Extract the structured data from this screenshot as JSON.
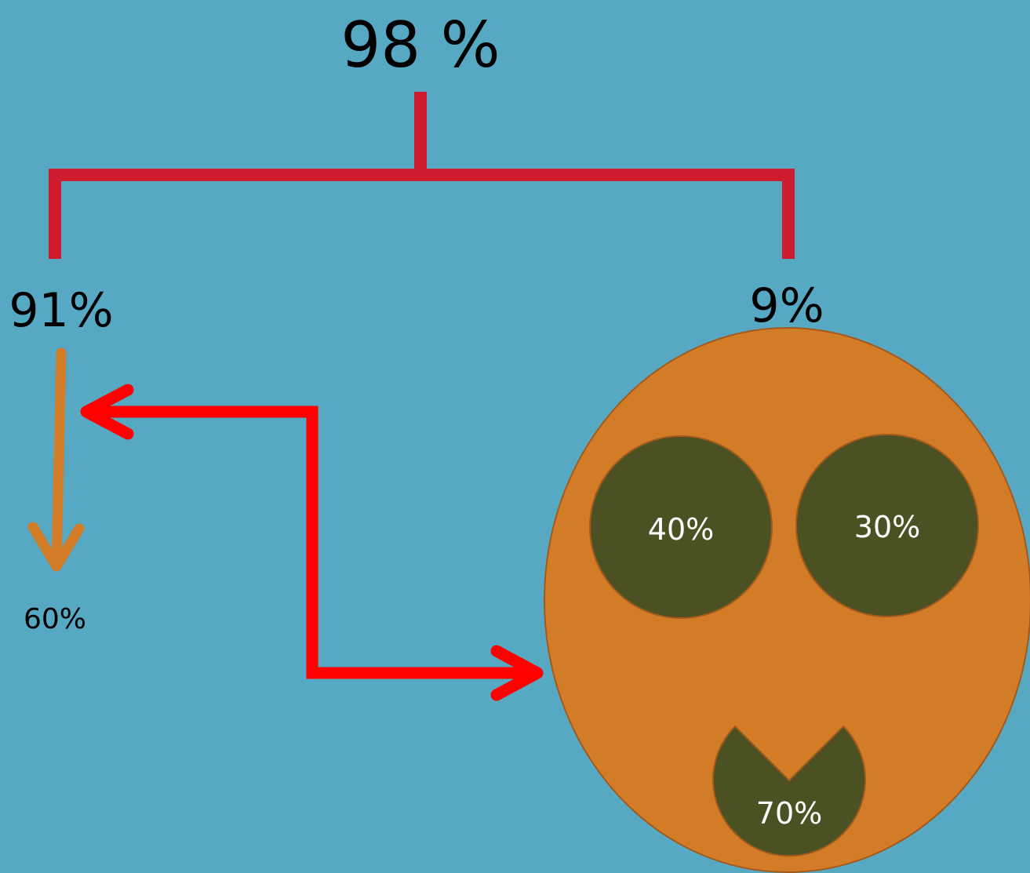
{
  "title": "",
  "labels": {
    "top_value": "98 %",
    "left_value": "91%",
    "right_value": "9%",
    "left_sub_value": "60%",
    "circle_left": "40%",
    "circle_right": "30%",
    "circle_bottom": "70%"
  },
  "colors": {
    "background": "#56a8c3",
    "bracket": "#cf1b2e",
    "orange": "#d37c28",
    "dark_olive": "#4b5123",
    "connector_red": "#ff0000",
    "outline": "#a2591c"
  }
}
